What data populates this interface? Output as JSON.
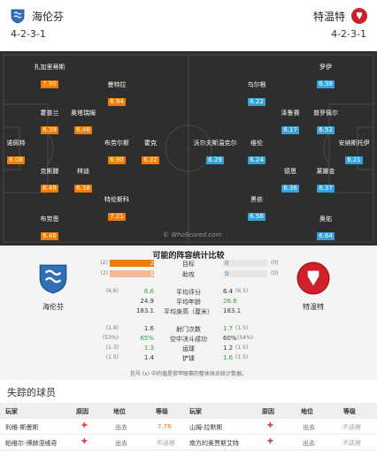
{
  "header": {
    "home_team": "海伦芬",
    "away_team": "特温特",
    "home_formation": "4-2-3-1",
    "away_formation": "4-2-3-1",
    "home_color": "#2f6fb8",
    "away_color": "#d0202a"
  },
  "pitch": {
    "watermark": "© WhoScored.com",
    "home_players": [
      {
        "name": "扎加里蒂斯",
        "rating": "7.90"
      },
      {
        "name": "曼特拉",
        "rating": "6.94"
      },
      {
        "name": "霍普兰",
        "rating": "6.39"
      },
      {
        "name": "奥塔瑞姆",
        "rating": "6.46"
      },
      {
        "name": "诺佩特",
        "rating": "6.08"
      },
      {
        "name": "布劳尔斯",
        "rating": "6.90"
      },
      {
        "name": "霍克",
        "rating": "6.32"
      },
      {
        "name": "克斯滕",
        "rating": "6.49"
      },
      {
        "name": "林迪",
        "rating": "6.38"
      },
      {
        "name": "特伦斯科",
        "rating": "7.21"
      },
      {
        "name": "布劳恩",
        "rating": "6.46"
      }
    ],
    "away_players": [
      {
        "name": "罗伊",
        "rating": "6.38"
      },
      {
        "name": "乌尔根",
        "rating": "6.22"
      },
      {
        "name": "泽鲁赛",
        "rating": "6.17"
      },
      {
        "name": "普罗佩尔",
        "rating": "6.52"
      },
      {
        "name": "沃尔夫斯温克尔",
        "rating": "6.29"
      },
      {
        "name": "维伦",
        "rating": "6.24"
      },
      {
        "name": "安纳斯托伊",
        "rating": "6.21"
      },
      {
        "name": "德恩",
        "rating": "6.36"
      },
      {
        "name": "莱娜金",
        "rating": "6.37"
      },
      {
        "name": "黑依",
        "rating": "6.56"
      },
      {
        "name": "奥佑",
        "rating": "6.64"
      }
    ]
  },
  "stats": {
    "title": "可能的阵容统计比较",
    "home_name": "海伦芬",
    "away_name": "特温特",
    "rows": [
      {
        "label": "目标",
        "home_small": "(2)",
        "home_value": "2",
        "away_value": "0",
        "away_small": "(0)"
      },
      {
        "label": "助攻",
        "home_small": "(2)",
        "home_value": "1",
        "away_value": "0",
        "away_small": "(0)"
      },
      {
        "label": "平均评分",
        "home_small": "(6.6)",
        "home_value": "6.6",
        "away_value": "6.4",
        "away_small": "(6.5)"
      },
      {
        "label": "平均年龄",
        "home_small": "",
        "home_value": "24.9",
        "away_value": "26.8",
        "away_small": ""
      },
      {
        "label": "平均身高（厘米）",
        "home_small": "",
        "home_value": "183.1",
        "away_value": "183.1",
        "away_small": ""
      },
      {
        "label": "射门次数",
        "home_small": "(1.8)",
        "home_value": "1.6",
        "away_value": "1.7",
        "away_small": "(1.5)"
      },
      {
        "label": "空中决斗成功",
        "home_small": "(53%)",
        "home_value": "65%",
        "away_value": "60%",
        "away_small": "(54%)"
      },
      {
        "label": "运球",
        "home_small": "(1.3)",
        "home_value": "1.3",
        "away_value": "1.2",
        "away_small": "(1.5)"
      },
      {
        "label": "铲球",
        "home_small": "(1.5)",
        "home_value": "1.4",
        "away_value": "1.6",
        "away_small": "(1.5)"
      }
    ],
    "goal_bar_fraction": 1.0,
    "assist_bar_fraction": 1.0,
    "footnote": "括号 (x) 中的值是荷甲联赛的整体球员统计数据。",
    "bar_color_goal": "#f07c00",
    "bar_color_assist": "#f4b89a",
    "bar_color_away": "#5b9bd5"
  },
  "missing": {
    "title": "失踪的球员",
    "headers": [
      "玩家",
      "原因",
      "地位",
      "等级",
      "玩家",
      "原因",
      "地位",
      "等级"
    ],
    "rows": [
      {
        "home_player": "利维-斯曼斯",
        "home_status": "出去",
        "home_rating": "7.76",
        "away_player": "山姆-拉默斯",
        "away_status": "出去",
        "away_rating": "不适用"
      },
      {
        "home_player": "帕维尔-博赫涅维奇",
        "home_status": "出去",
        "home_rating": "不适用",
        "away_player": "南方的奥贾斯艾特",
        "away_status": "出去",
        "away_rating": "不适用"
      }
    ]
  }
}
